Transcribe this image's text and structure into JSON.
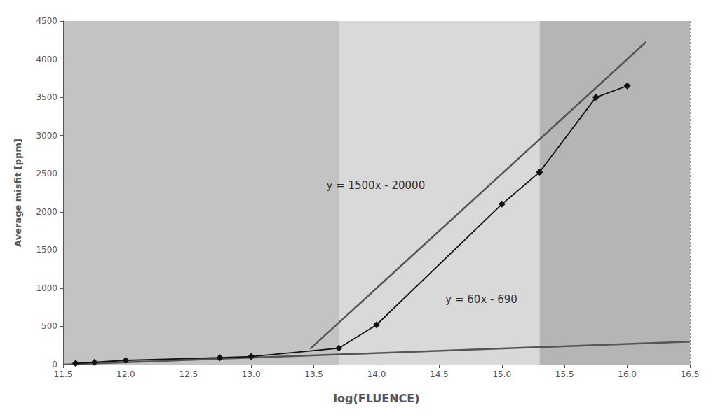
{
  "chart_data": {
    "type": "line",
    "xlabel": "log(FLUENCE)",
    "ylabel": "Average misfit [ppm]",
    "xlim": [
      11.5,
      16.5
    ],
    "ylim": [
      0,
      4500
    ],
    "xticks": [
      11.5,
      {
        "value": 12,
        "label": "12.0"
      },
      12.5,
      {
        "value": 13,
        "label": "13.0"
      },
      13.5,
      {
        "value": 14,
        "label": "14.0"
      },
      14.5,
      {
        "value": 15,
        "label": "15.0"
      },
      15.5,
      {
        "value": 16,
        "label": "16.0"
      },
      16.5
    ],
    "yticks": [
      0,
      500,
      1000,
      1500,
      2000,
      2500,
      3000,
      3500,
      4000,
      4500
    ],
    "grid": true,
    "regions": [
      {
        "x": [
          11.5,
          13.7
        ],
        "color": "#c3c3c3"
      },
      {
        "x": [
          13.7,
          15.3
        ],
        "color": "#d9d9d9"
      },
      {
        "x": [
          15.3,
          16.5
        ],
        "color": "#b5b5b5"
      }
    ],
    "series": [
      {
        "type": "line",
        "color": "#555555",
        "line_style": "solid",
        "x": [
          11.5,
          16.5
        ],
        "values": [
          0,
          300
        ]
      },
      {
        "type": "line",
        "color": "#555555",
        "line_style": "solid",
        "x": [
          13.47,
          16.15
        ],
        "values": [
          205,
          4225
        ]
      },
      {
        "type": "line",
        "color": "#111111",
        "line_style": "solid",
        "marker": "diamond",
        "x": [
          11.6,
          11.75,
          12.0,
          12.75,
          13.0,
          13.7,
          14.0,
          15.0,
          15.3,
          15.75,
          16.0
        ],
        "values": [
          15,
          30,
          55,
          90,
          105,
          215,
          520,
          2100,
          2520,
          3500,
          3650
        ]
      }
    ],
    "annotations": [
      {
        "text": "y = 1500x - 20000",
        "x": 13.6,
        "y": 2230
      },
      {
        "text": "y = 60x - 690",
        "x": 14.55,
        "y": 740
      }
    ]
  }
}
